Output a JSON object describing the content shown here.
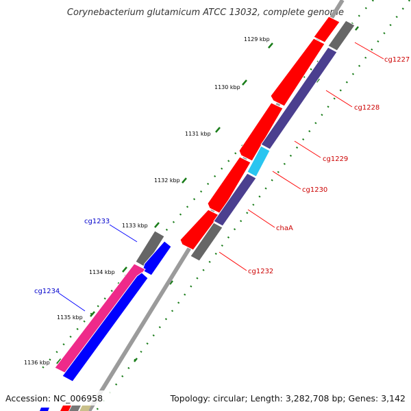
{
  "title": "Corynebacterium glutamicum ATCC 13032, complete genome",
  "footer": {
    "accession": "Accession: NC_006958",
    "topology": "Topology: circular; Length: 3,282,708 bp; Genes: 3,142"
  },
  "scale_labels": [
    "1129 kbp",
    "1130 kbp",
    "1131 kbp",
    "1132 kbp",
    "1133 kbp",
    "1134 kbp",
    "1135 kbp",
    "1136 kbp"
  ],
  "genes": {
    "cg1227": "cg1227",
    "cg1228": "cg1228",
    "cg1229": "cg1229",
    "cg1230": "cg1230",
    "chaA": "chaA",
    "cg1232": "cg1232",
    "cg1233": "cg1233",
    "cg1234": "cg1234"
  },
  "colors": {
    "forward": "#ff0000",
    "reverse_purple": "#4b3f8f",
    "reverse_cyan": "#29c5f0",
    "gray": "#666666",
    "pink": "#ee2a8a",
    "blue": "#0000ff",
    "backbone": "#8c8c8c",
    "tick": "#1a7d1a",
    "label_red": "#cc0000",
    "label_blue": "#0000cc"
  }
}
